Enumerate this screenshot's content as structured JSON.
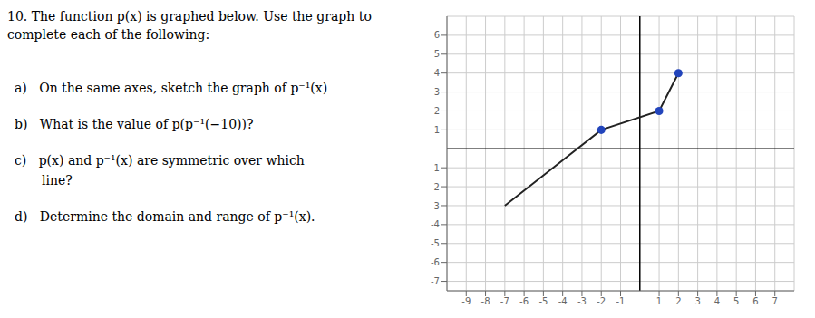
{
  "chart_data": {
    "type": "line",
    "title": "10. The function p(x) is graphed below. Use the graph to complete each of the following:",
    "annotations": [
      "a)   On the same axes, sketch the graph of p⁻¹(x)",
      "b)   What is the value of p(p⁻¹(−10))?",
      "c)   p(x) and p⁻¹(x) are symmetric over which",
      "line?",
      "d)   Determine the domain and range of p⁻¹(x)."
    ],
    "xlim": [
      -10,
      8
    ],
    "ylim": [
      -7.5,
      7
    ],
    "xticks": [
      -9,
      -8,
      -7,
      -6,
      -5,
      -4,
      -3,
      -2,
      -1,
      1,
      2,
      3,
      4,
      5,
      6,
      7
    ],
    "yticks": [
      -7,
      -6,
      -5,
      -4,
      -3,
      -2,
      -1,
      1,
      2,
      3,
      4,
      5,
      6
    ],
    "grid": true,
    "series": [
      {
        "type": "line",
        "color": "#222222",
        "x": [
          -7,
          -4.5,
          -2,
          1,
          2
        ],
        "values": [
          -3,
          -1,
          1,
          2,
          4
        ]
      },
      {
        "type": "scatter",
        "color": "#2244bb",
        "x": [
          -2,
          1,
          2
        ],
        "values": [
          1,
          2,
          4
        ]
      }
    ]
  }
}
